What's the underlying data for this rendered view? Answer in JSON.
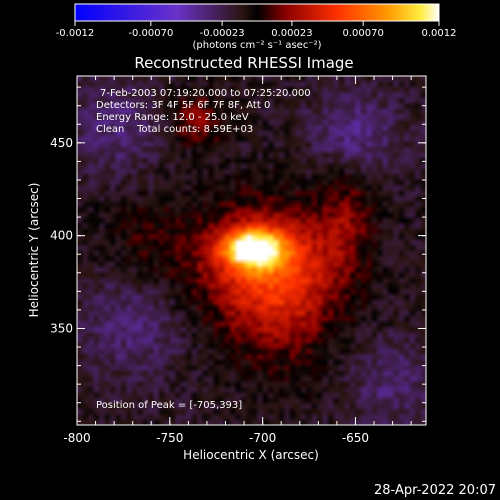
{
  "chart_data": {
    "type": "heatmap",
    "title": "Reconstructed RHESSI Image",
    "info_lines": [
      "7-Feb-2003 07:19:20.000 to 07:25:20.000",
      "Detectors: 3F 4F 5F 6F 7F 8F, Att 0",
      "Energy Range: 12.0 - 25.0 keV",
      "Clean    Total counts: 8.59E+03"
    ],
    "peak_label": "Position of Peak = [-705,393]",
    "peak": [
      -705,
      393
    ],
    "xlabel": "Heliocentric X (arcsec)",
    "ylabel": "Heliocentric Y (arcsec)",
    "xlim": [
      -800,
      -612
    ],
    "ylim": [
      298,
      486
    ],
    "xticks": [
      -800,
      -750,
      -700,
      -650
    ],
    "xtick_labels": [
      "-800",
      "-750",
      "-700",
      "-650"
    ],
    "yticks": [
      350,
      400,
      450
    ],
    "ytick_labels": [
      "350",
      "400",
      "450"
    ],
    "colorbar": {
      "range": [
        -0.0012,
        0.0012
      ],
      "ticks": [
        -0.0012,
        -0.0007,
        -0.00023,
        0.00023,
        0.0007,
        0.0012
      ],
      "tick_labels": [
        "-0.0012",
        "-0.00070",
        "-0.00023",
        "0.00023",
        "0.00070",
        "0.0012"
      ],
      "units": "(photons cm⁻² s⁻¹ asec⁻²)"
    },
    "sources": [
      {
        "x": -705,
        "y": 393,
        "peak": 0.0012,
        "sigma_x": 11,
        "sigma_y": 7
      },
      {
        "x": -700,
        "y": 385,
        "peak": 0.0005,
        "sigma_x": 28,
        "sigma_y": 22
      },
      {
        "x": -690,
        "y": 365,
        "peak": 0.0003,
        "sigma_x": 20,
        "sigma_y": 28
      },
      {
        "x": -735,
        "y": 462,
        "peak": 0.00032,
        "sigma_x": 10,
        "sigma_y": 10
      },
      {
        "x": -655,
        "y": 410,
        "peak": 0.00025,
        "sigma_x": 10,
        "sigma_y": 20
      },
      {
        "x": -762,
        "y": 398,
        "peak": 0.00015,
        "sigma_x": 16,
        "sigma_y": 16
      },
      {
        "x": -770,
        "y": 352,
        "peak": -0.0002,
        "sigma_x": 20,
        "sigma_y": 20
      },
      {
        "x": -650,
        "y": 455,
        "peak": -0.00025,
        "sigma_x": 16,
        "sigma_y": 16
      },
      {
        "x": -780,
        "y": 460,
        "peak": -0.0002,
        "sigma_x": 18,
        "sigma_y": 18
      },
      {
        "x": -630,
        "y": 320,
        "peak": -0.0002,
        "sigma_x": 16,
        "sigma_y": 16
      }
    ]
  },
  "timestamp": "28-Apr-2022 20:07"
}
